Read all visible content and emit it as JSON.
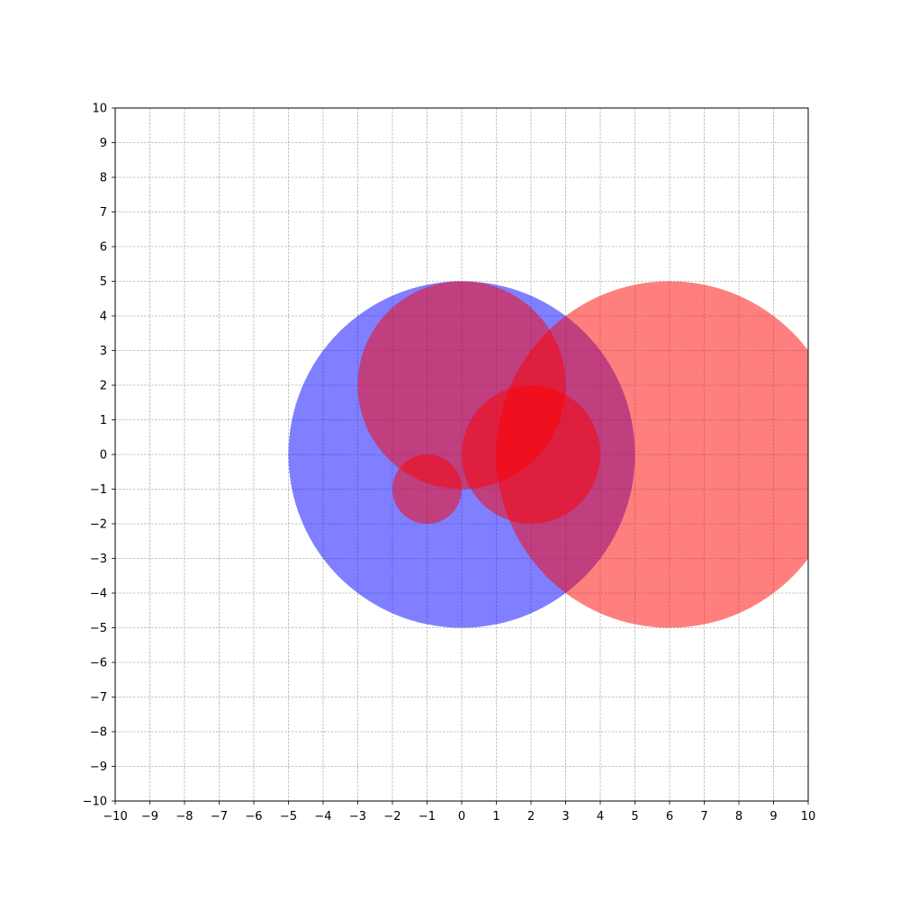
{
  "chart_data": {
    "type": "scatter",
    "title": "",
    "xlabel": "",
    "ylabel": "",
    "xlim": [
      -10,
      10
    ],
    "ylim": [
      -10,
      10
    ],
    "grid": true,
    "xticks": [
      "−10",
      "−9",
      "−8",
      "−7",
      "−6",
      "−5",
      "−4",
      "−3",
      "−2",
      "−1",
      "0",
      "1",
      "2",
      "3",
      "4",
      "5",
      "6",
      "7",
      "8",
      "9",
      "10"
    ],
    "yticks": [
      "−10",
      "−9",
      "−8",
      "−7",
      "−6",
      "−5",
      "−4",
      "−3",
      "−2",
      "−1",
      "0",
      "1",
      "2",
      "3",
      "4",
      "5",
      "6",
      "7",
      "8",
      "9",
      "10"
    ],
    "shapes": [
      {
        "kind": "circle",
        "cx": 0,
        "cy": 0,
        "r": 5,
        "color": "#0000ff",
        "alpha": 0.5
      },
      {
        "kind": "circle",
        "cx": 6,
        "cy": 0,
        "r": 5,
        "color": "#ff0000",
        "alpha": 0.5
      },
      {
        "kind": "circle",
        "cx": 0,
        "cy": 2,
        "r": 3,
        "color": "#ff0000",
        "alpha": 0.5
      },
      {
        "kind": "circle",
        "cx": 2,
        "cy": 0,
        "r": 2,
        "color": "#ff0000",
        "alpha": 0.5
      },
      {
        "kind": "circle",
        "cx": -1,
        "cy": -1,
        "r": 1,
        "color": "#ff0000",
        "alpha": 0.5
      }
    ]
  }
}
